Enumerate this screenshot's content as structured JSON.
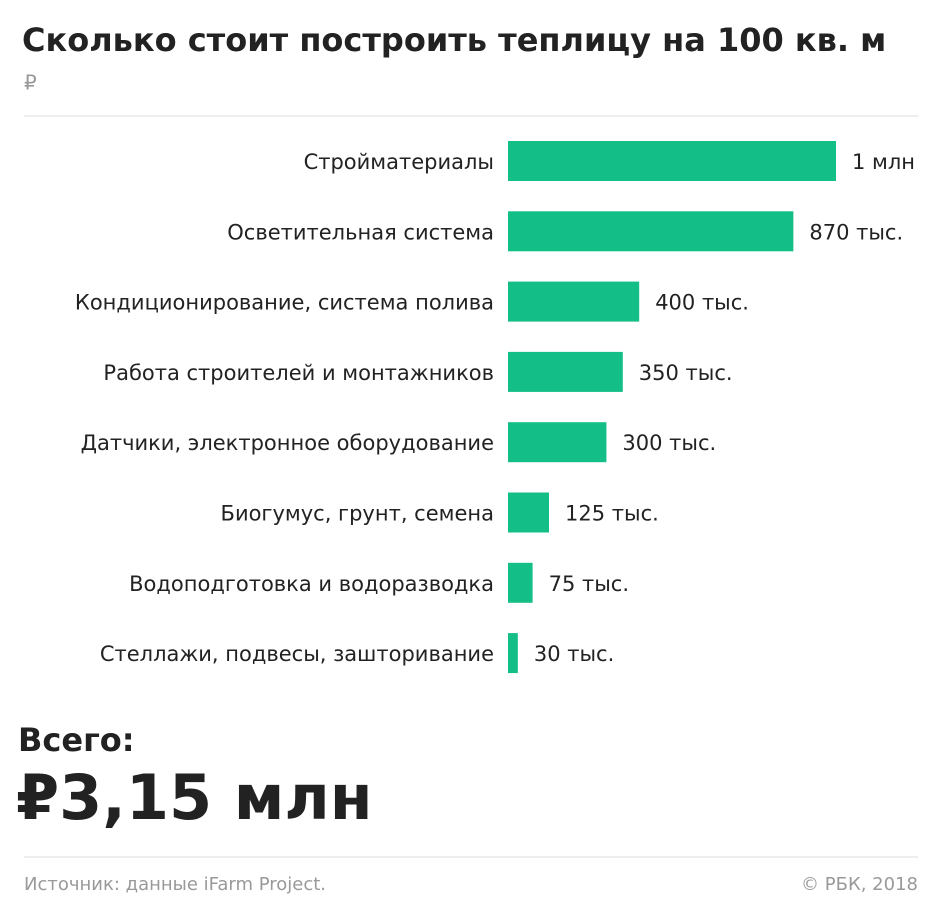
{
  "chart_data": {
    "type": "hbar",
    "title": "Сколько стоит построить теплицу на 100 кв. м",
    "subtitle": "₽",
    "categories": [
      "Стройматериалы",
      "Осветительная система",
      "Кондиционирование, система полива",
      "Работа строителей и монтажников",
      "Датчики, электронное оборудование",
      "Биогумус, грунт, семена",
      "Водоподготовка и водоразводка",
      "Стеллажи, подвесы, зашторивание"
    ],
    "values": [
      1000000,
      870000,
      400000,
      350000,
      300000,
      125000,
      75000,
      30000
    ],
    "value_labels": [
      "1 млн",
      "870 тыс.",
      "400 тыс.",
      "350 тыс.",
      "300 тыс.",
      "125 тыс.",
      "75 тыс.",
      "30 тыс."
    ],
    "color": "#13be87",
    "total_label": "Всего:",
    "total_text": "₽3,15 млн",
    "source": "Источник: данные iFarm Project.",
    "credit": "© РБК, 2018"
  }
}
